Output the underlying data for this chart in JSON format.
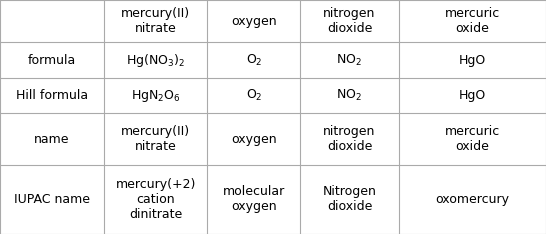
{
  "col_headers": [
    "",
    "mercury(II)\nnitrate",
    "oxygen",
    "nitrogen\ndioxide",
    "mercuric\noxide"
  ],
  "rows": [
    {
      "label": "formula",
      "cells": [
        {
          "text": "Hg(NO",
          "sub": "3",
          "after": ")",
          "sub2": "2",
          "type": "formula"
        },
        {
          "text": "O",
          "sub": "2",
          "type": "formula"
        },
        {
          "text": "NO",
          "sub": "2",
          "type": "formula"
        },
        {
          "text": "HgO",
          "type": "plain"
        }
      ]
    },
    {
      "label": "Hill formula",
      "cells": [
        {
          "text": "HgN",
          "sub": "2",
          "after": "O",
          "sub2": "6",
          "type": "formula"
        },
        {
          "text": "O",
          "sub": "2",
          "type": "formula"
        },
        {
          "text": "NO",
          "sub": "2",
          "type": "formula"
        },
        {
          "text": "HgO",
          "type": "plain"
        }
      ]
    },
    {
      "label": "name",
      "cells": [
        {
          "text": "mercury(II)\nnitrate",
          "type": "plain"
        },
        {
          "text": "oxygen",
          "type": "plain"
        },
        {
          "text": "nitrogen\ndioxide",
          "type": "plain"
        },
        {
          "text": "mercuric\noxide",
          "type": "plain"
        }
      ]
    },
    {
      "label": "IUPAC name",
      "cells": [
        {
          "text": "mercury(+2)\ncation\ndinitrate",
          "type": "plain"
        },
        {
          "text": "molecular\noxygen",
          "type": "plain"
        },
        {
          "text": "Nitrogen\ndioxide",
          "type": "plain"
        },
        {
          "text": "oxomercury",
          "type": "plain"
        }
      ]
    }
  ],
  "bg_color": "#ffffff",
  "header_bg": "#ffffff",
  "line_color": "#aaaaaa",
  "font_size": 9,
  "header_font_size": 9
}
